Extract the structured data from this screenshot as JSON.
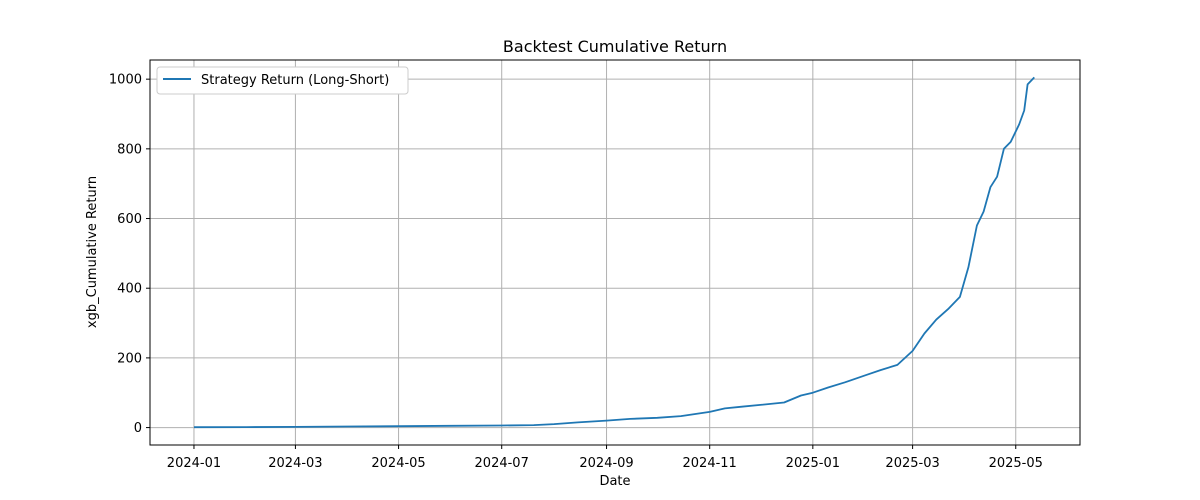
{
  "chart_data": {
    "type": "line",
    "title": "Backtest Cumulative Return",
    "xlabel": "Date",
    "ylabel": "xgb_Cumulative Return",
    "xlim": [
      "2023-12-06",
      "2025-06-08"
    ],
    "ylim": [
      -50,
      1055
    ],
    "grid": true,
    "legend_position": "top-left",
    "x_ticks": [
      "2024-01-01",
      "2024-03-01",
      "2024-05-01",
      "2024-07-01",
      "2024-09-01",
      "2024-11-01",
      "2025-01-01",
      "2025-03-01",
      "2025-05-01"
    ],
    "x_tick_labels": [
      "2024-01",
      "2024-03",
      "2024-05",
      "2024-07",
      "2024-09",
      "2024-11",
      "2025-01",
      "2025-03",
      "2025-05"
    ],
    "y_ticks": [
      0,
      200,
      400,
      600,
      800,
      1000
    ],
    "y_tick_labels": [
      "0",
      "200",
      "400",
      "600",
      "800",
      "1000"
    ],
    "series": [
      {
        "name": "Strategy Return (Long-Short)",
        "color": "#1f77b4",
        "x": [
          "2024-01-01",
          "2024-02-01",
          "2024-03-01",
          "2024-04-01",
          "2024-05-01",
          "2024-06-01",
          "2024-07-01",
          "2024-07-20",
          "2024-08-01",
          "2024-08-15",
          "2024-09-01",
          "2024-09-15",
          "2024-10-01",
          "2024-10-15",
          "2024-11-01",
          "2024-11-10",
          "2024-11-20",
          "2024-12-01",
          "2024-12-15",
          "2024-12-25",
          "2025-01-01",
          "2025-01-10",
          "2025-01-20",
          "2025-02-01",
          "2025-02-10",
          "2025-02-20",
          "2025-03-01",
          "2025-03-08",
          "2025-03-15",
          "2025-03-22",
          "2025-03-29",
          "2025-04-03",
          "2025-04-08",
          "2025-04-12",
          "2025-04-16",
          "2025-04-20",
          "2025-04-24",
          "2025-04-28",
          "2025-05-03",
          "2025-05-06",
          "2025-05-08",
          "2025-05-12"
        ],
        "y": [
          1,
          1.5,
          2,
          3,
          4,
          5,
          6,
          7,
          10,
          15,
          20,
          25,
          28,
          33,
          45,
          55,
          60,
          65,
          72,
          92,
          100,
          115,
          130,
          150,
          165,
          180,
          220,
          270,
          310,
          340,
          375,
          460,
          580,
          620,
          690,
          720,
          800,
          820,
          870,
          910,
          985,
          1005
        ]
      }
    ]
  }
}
